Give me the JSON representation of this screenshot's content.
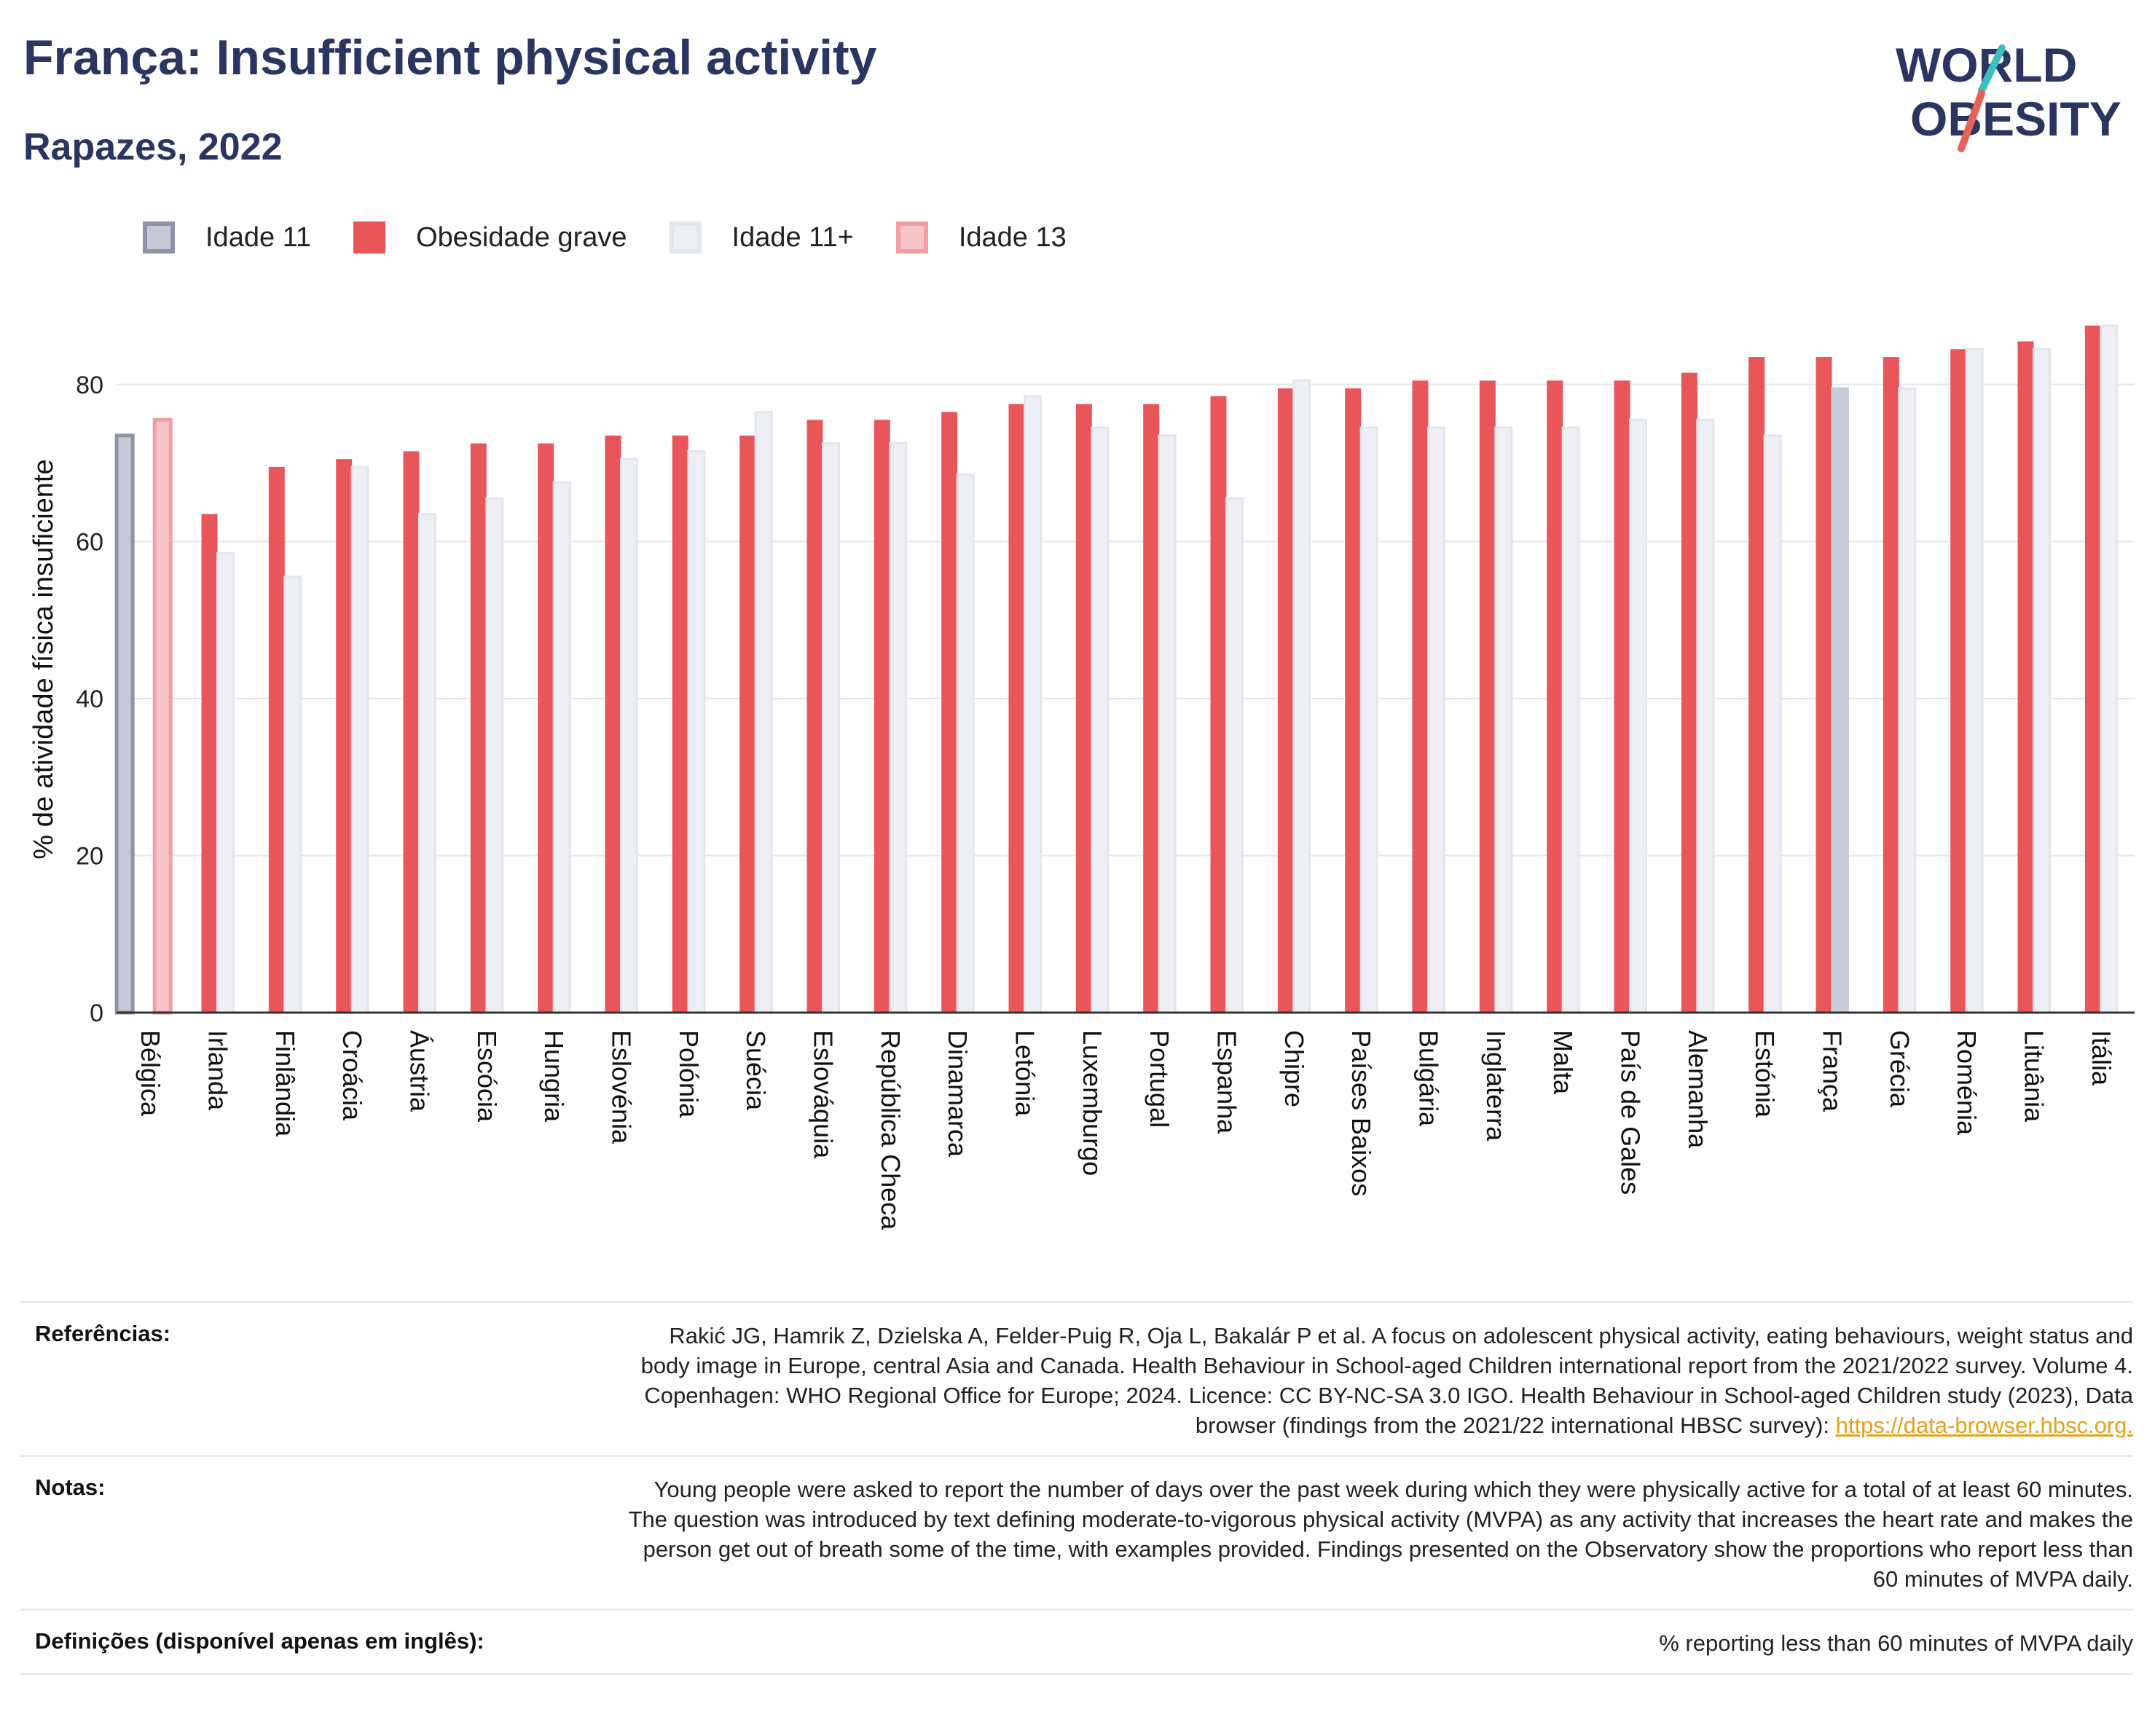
{
  "header": {
    "title": "França: Insufficient physical activity",
    "subtitle": "Rapazes, 2022"
  },
  "logo": {
    "line1": "WORLD",
    "line2": "OBESITY",
    "colors": {
      "text": "#2b3562",
      "slash_teal": "#3bbfbf",
      "slash_coral": "#e8605a"
    }
  },
  "legend": [
    {
      "label": "Idade 11",
      "fill": "#c6c9d6",
      "stroke": "#8d93ab"
    },
    {
      "label": "Obesidade grave",
      "fill": "#e8565a",
      "stroke": "#e8565a"
    },
    {
      "label": "Idade 11+",
      "fill": "#eeeff4",
      "stroke": "#e4e6ee"
    },
    {
      "label": "Idade 13",
      "fill": "#f7c6c8",
      "stroke": "#f29ea2"
    }
  ],
  "chart_data": {
    "type": "bar",
    "ylabel": "% de atividade física insuficiente",
    "xlabel": "",
    "ylim": [
      0,
      90
    ],
    "yticks": [
      0,
      20,
      40,
      60,
      80
    ],
    "grid": true,
    "legend_position": "top-left",
    "categories": [
      "Bélgica",
      "Irlanda",
      "Finlândia",
      "Croácia",
      "Áustria",
      "Escócia",
      "Hungria",
      "Eslovénia",
      "Polónia",
      "Suécia",
      "Eslováquia",
      "República Checa",
      "Dinamarca",
      "Letónia",
      "Luxemburgo",
      "Portugal",
      "Espanha",
      "Chipre",
      "Países Baixos",
      "Bulgária",
      "Inglaterra",
      "Malta",
      "País de Gales",
      "Alemanha",
      "Estónia",
      "França",
      "Grécia",
      "Roménia",
      "Lituânia",
      "Itália"
    ],
    "series": [
      {
        "name": "Obesidade grave",
        "color": "#e8565a",
        "values": [
          null,
          63.5,
          69.5,
          70.5,
          71.5,
          72.5,
          72.5,
          73.5,
          73.5,
          73.5,
          75.5,
          75.5,
          76.5,
          77.5,
          77.5,
          77.5,
          78.5,
          79.5,
          79.5,
          80.5,
          80.5,
          80.5,
          80.5,
          81.5,
          83.5,
          83.5,
          83.5,
          84.5,
          85.5,
          87.5
        ]
      },
      {
        "name": "Idade 11+",
        "color": "#eeeff4",
        "values": [
          null,
          58.5,
          55.5,
          69.5,
          63.5,
          65.5,
          67.5,
          70.5,
          71.5,
          76.5,
          72.5,
          72.5,
          68.5,
          78.5,
          74.5,
          73.5,
          65.5,
          80.5,
          74.5,
          74.5,
          74.5,
          74.5,
          75.5,
          75.5,
          73.5,
          79.5,
          79.5,
          84.5,
          84.5,
          87.5
        ]
      },
      {
        "name": "Idade 11",
        "color": "#c6c9d6",
        "values": [
          73.5,
          null,
          null,
          null,
          null,
          null,
          null,
          null,
          null,
          null,
          null,
          null,
          null,
          null,
          null,
          null,
          null,
          null,
          null,
          null,
          null,
          null,
          null,
          null,
          null,
          null,
          null,
          null,
          null,
          null
        ]
      },
      {
        "name": "Idade 13",
        "color": "#f7c6c8",
        "values": [
          75.5,
          null,
          null,
          null,
          null,
          null,
          null,
          null,
          null,
          null,
          null,
          null,
          null,
          null,
          null,
          null,
          null,
          null,
          null,
          null,
          null,
          null,
          null,
          null,
          null,
          null,
          null,
          null,
          null,
          null
        ]
      }
    ],
    "highlight_category": "França",
    "highlight_color": "#c9ccd9"
  },
  "references": [
    {
      "key": "Referências:",
      "text": "Rakić JG, Hamrik Z, Dzielska A, Felder-Puig R, Oja L, Bakalár P et al. A focus on adolescent physical activity, eating behaviours, weight status and body image in Europe, central Asia and Canada. Health Behaviour in School-aged Children international report from the 2021/2022 survey. Volume 4. Copenhagen: WHO Regional Office for Europe; 2024. Licence: CC BY-NC-SA 3.0 IGO. Health Behaviour in School-aged Children study (2023), Data browser (findings from the 2021/22 international HBSC survey): ",
      "link": "https://data-browser.hbsc.org."
    },
    {
      "key": "Notas:",
      "text": "Young people were asked to report the number of days over the past week during which they were physically active for a total of at least 60 minutes. The question was introduced by text defining moderate-to-vigorous physical activity (MVPA) as any activity that increases the heart rate and makes the person get out of breath some of the time, with examples provided. Findings presented on the Observatory show the proportions who report less than 60 minutes of MVPA daily."
    },
    {
      "key": "Definições (disponível apenas em inglês):",
      "text": "% reporting less than 60 minutes of MVPA daily"
    }
  ]
}
